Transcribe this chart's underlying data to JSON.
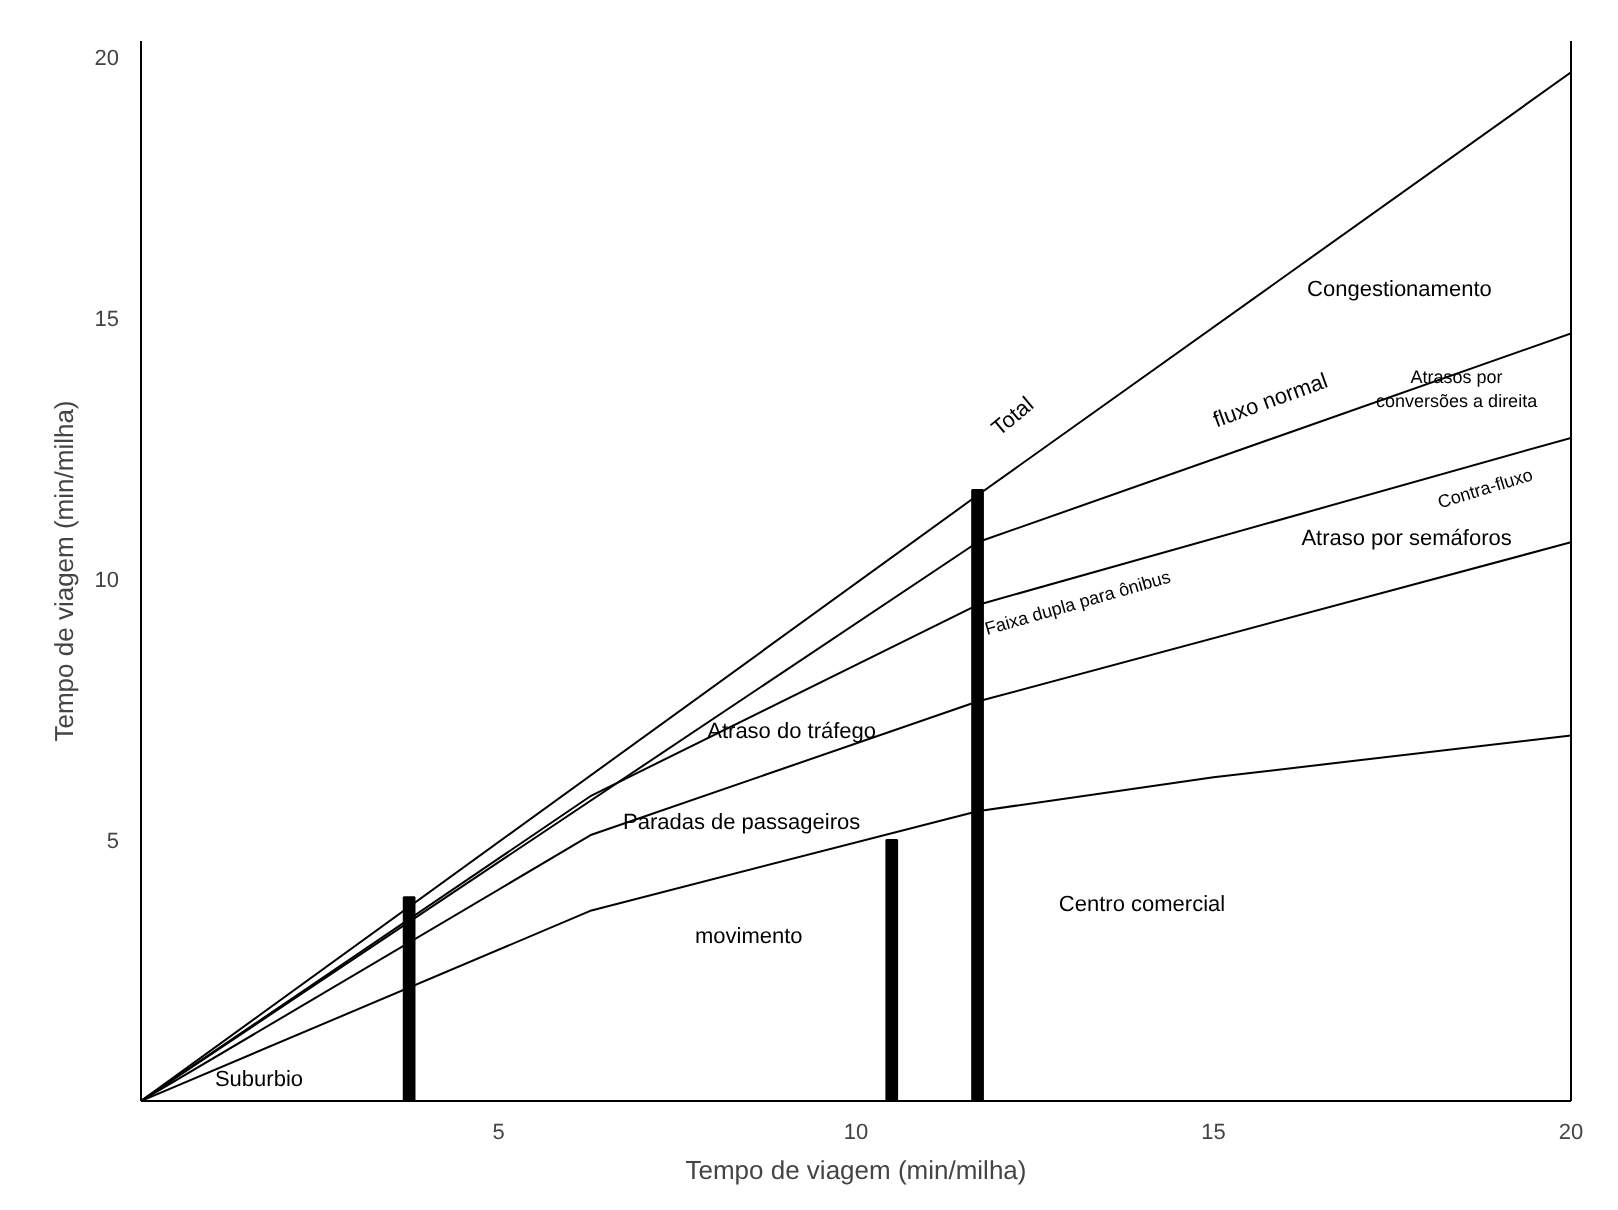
{
  "chart_data": {
    "type": "line",
    "xlabel": "Tempo de viagem (min/milha)",
    "ylabel": "Tempo de viagem (min/milha)",
    "xlim": [
      0,
      20
    ],
    "ylim": [
      0,
      20.3
    ],
    "xticks": [
      5,
      10,
      15,
      20
    ],
    "yticks": [
      5,
      10,
      15,
      20
    ],
    "grid": false,
    "marker": "none",
    "line_style": "solid",
    "series": [
      {
        "color": "#000000",
        "x": [
          0,
          11.7,
          20
        ],
        "values": [
          0,
          11.6,
          19.7
        ]
      },
      {
        "color": "#000000",
        "x": [
          0,
          11.7,
          20
        ],
        "values": [
          0,
          10.7,
          14.7
        ]
      },
      {
        "color": "#000000",
        "x": [
          0,
          6.3,
          11.7,
          20
        ],
        "values": [
          0,
          5.85,
          9.5,
          12.7
        ]
      },
      {
        "color": "#000000",
        "x": [
          0,
          6.3,
          11.7,
          20
        ],
        "values": [
          0,
          5.1,
          7.65,
          10.7
        ]
      },
      {
        "color": "#000000",
        "x": [
          0,
          6.3,
          11.7,
          15,
          20
        ],
        "values": [
          0,
          3.65,
          5.55,
          6.2,
          7.0
        ]
      },
      {
        "type": "bar",
        "color": "#000000",
        "x": [
          3.75,
          10.5,
          11.7
        ],
        "values": [
          3.9,
          5.0,
          11.7
        ]
      }
    ],
    "annotations": [
      "Congestionamento",
      "fluxo normal",
      "Total",
      "Atrasos por\nconversões a direita",
      "Contra-fluxo",
      "Faixa dupla para ônibus",
      "Atraso por semáforos",
      "Atraso do tráfego",
      "Paradas de passageiros",
      "movimento",
      "Centro comercial",
      "Suburbio"
    ]
  }
}
